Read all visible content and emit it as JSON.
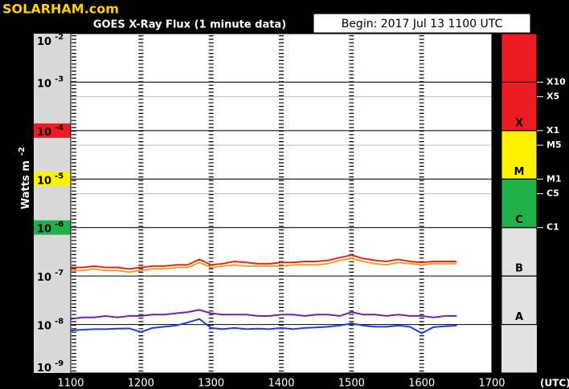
{
  "chart_data": {
    "type": "line",
    "brand": "SOLARHAM.com",
    "title": "GOES X-Ray Flux (1 minute data)",
    "begin": "Begin: 2017 Jul 13 1100 UTC",
    "ylabel": "Watts m",
    "ylabel_exponent": "-2",
    "x_unit": "(UTC)",
    "y_scale": "log",
    "ylim": [
      1e-09,
      0.01
    ],
    "yticks": [
      {
        "value": 0.01,
        "label": "10",
        "exponent": "-2"
      },
      {
        "value": 0.001,
        "label": "10",
        "exponent": "-3"
      },
      {
        "value": 0.0001,
        "label": "10",
        "exponent": "-4"
      },
      {
        "value": 1e-05,
        "label": "10",
        "exponent": "-5"
      },
      {
        "value": 1e-06,
        "label": "10",
        "exponent": "-6"
      },
      {
        "value": 1e-07,
        "label": "10",
        "exponent": "-7"
      },
      {
        "value": 1e-08,
        "label": "10",
        "exponent": "-8"
      },
      {
        "value": 1e-09,
        "label": "10",
        "exponent": "-9"
      }
    ],
    "xlim": [
      660,
      1020
    ],
    "xticks": [
      {
        "value": 660,
        "label": "1100"
      },
      {
        "value": 720,
        "label": "1200"
      },
      {
        "value": 780,
        "label": "1300"
      },
      {
        "value": 840,
        "label": "1400"
      },
      {
        "value": 900,
        "label": "1500"
      },
      {
        "value": 960,
        "label": "1600"
      },
      {
        "value": 1020,
        "label": "1700"
      }
    ],
    "flare_classes": [
      {
        "label": "A",
        "from": 1e-08,
        "to": 1e-07,
        "color": "#e2e2e2"
      },
      {
        "label": "B",
        "from": 1e-07,
        "to": 1e-06,
        "color": "#e2e2e2"
      },
      {
        "label": "C",
        "from": 1e-06,
        "to": 1e-05,
        "color": "#22b04a"
      },
      {
        "label": "M",
        "from": 1e-05,
        "to": 0.0001,
        "color": "#fff200"
      },
      {
        "label": "X",
        "from": 0.0001,
        "to": 0.01,
        "color": "#ec1c24"
      }
    ],
    "class_ticks": [
      {
        "value": 0.001,
        "label": "X10"
      },
      {
        "value": 0.0005,
        "label": "X5"
      },
      {
        "value": 0.0001,
        "label": "X1"
      },
      {
        "value": 5e-05,
        "label": "M5"
      },
      {
        "value": 1e-05,
        "label": "M1"
      },
      {
        "value": 5e-06,
        "label": "C5"
      },
      {
        "value": 1e-06,
        "label": "C1"
      }
    ],
    "x": [
      660,
      670,
      680,
      690,
      700,
      710,
      720,
      730,
      740,
      750,
      760,
      770,
      780,
      790,
      800,
      810,
      820,
      830,
      840,
      850,
      860,
      870,
      880,
      890,
      900,
      910,
      920,
      930,
      940,
      950,
      960,
      970,
      980,
      990
    ],
    "series": [
      {
        "color": "#f0a020",
        "values": [
          1.3e-07,
          1.3e-07,
          1.4e-07,
          1.3e-07,
          1.3e-07,
          1.2e-07,
          1.3e-07,
          1.4e-07,
          1.4e-07,
          1.5e-07,
          1.5e-07,
          1.9e-07,
          1.5e-07,
          1.6e-07,
          1.7e-07,
          1.6e-07,
          1.6e-07,
          1.6e-07,
          1.6e-07,
          1.7e-07,
          1.7e-07,
          1.7e-07,
          1.8e-07,
          2.1e-07,
          2.3e-07,
          2e-07,
          1.8e-07,
          1.7e-07,
          1.9e-07,
          1.8e-07,
          1.7e-07,
          1.8e-07,
          1.8e-07,
          1.8e-07
        ]
      },
      {
        "color": "#e3261b",
        "values": [
          1.5e-07,
          1.5e-07,
          1.6e-07,
          1.5e-07,
          1.5e-07,
          1.4e-07,
          1.5e-07,
          1.6e-07,
          1.6e-07,
          1.7e-07,
          1.7e-07,
          2.2e-07,
          1.7e-07,
          1.8e-07,
          2e-07,
          1.9e-07,
          1.8e-07,
          1.8e-07,
          1.9e-07,
          1.9e-07,
          2e-07,
          2e-07,
          2.1e-07,
          2.4e-07,
          2.7e-07,
          2.3e-07,
          2.1e-07,
          2e-07,
          2.2e-07,
          2e-07,
          1.9e-07,
          2e-07,
          2e-07,
          2e-07
        ]
      },
      {
        "color": "#1f3de0",
        "values": [
          7.5e-09,
          7.8e-09,
          8e-09,
          8e-09,
          8.2e-09,
          8.3e-09,
          7e-09,
          8.5e-09,
          9e-09,
          9.5e-09,
          1.1e-08,
          1.3e-08,
          8.5e-09,
          8e-09,
          8.5e-09,
          8e-09,
          8.2e-09,
          8e-09,
          8.5e-09,
          8e-09,
          8.5e-09,
          8.7e-09,
          9e-09,
          9.5e-09,
          1.05e-08,
          9.5e-09,
          9e-09,
          9e-09,
          9.5e-09,
          9e-09,
          6.6e-09,
          8.8e-09,
          9.2e-09,
          9.5e-09
        ]
      },
      {
        "color": "#7420a8",
        "values": [
          1.3e-08,
          1.4e-08,
          1.4e-08,
          1.5e-08,
          1.4e-08,
          1.5e-08,
          1.5e-08,
          1.6e-08,
          1.6e-08,
          1.7e-08,
          1.8e-08,
          2e-08,
          1.7e-08,
          1.6e-08,
          1.6e-08,
          1.6e-08,
          1.5e-08,
          1.5e-08,
          1.6e-08,
          1.6e-08,
          1.5e-08,
          1.6e-08,
          1.6e-08,
          1.5e-08,
          1.8e-08,
          1.6e-08,
          1.6e-08,
          1.5e-08,
          1.6e-08,
          1.5e-08,
          1.5e-08,
          1.4e-08,
          1.5e-08,
          1.5e-08
        ]
      }
    ]
  }
}
